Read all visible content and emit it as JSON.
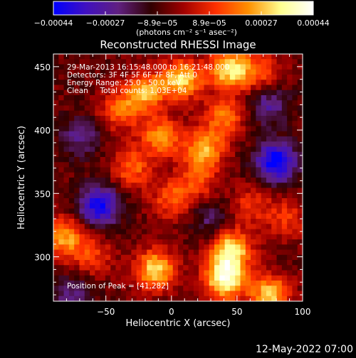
{
  "chart_data": {
    "type": "heatmap",
    "title": "Reconstructed RHESSI Image",
    "xlabel": "Heliocentric X (arcsec)",
    "ylabel": "Heliocentric Y (arcsec)",
    "xlim": [
      -90,
      100
    ],
    "ylim": [
      265,
      460
    ],
    "x_ticks": [
      -50,
      0,
      50,
      100
    ],
    "y_ticks": [
      300,
      350,
      400,
      450
    ],
    "x_tick_labels": [
      "−50",
      "0",
      "50",
      "100"
    ],
    "y_tick_labels": [
      "300",
      "350",
      "400",
      "450"
    ],
    "colorbar": {
      "range": [
        -0.00044,
        0.00044
      ],
      "tick_labels": [
        "−0.00044",
        "−0.00027",
        "−8.9e−05",
        "8.9e−05",
        "0.00027",
        "0.00044"
      ],
      "unit_label": "(photons cm⁻² s⁻¹ asec⁻²)",
      "colors": [
        "#0000ff",
        "#4010c0",
        "#602080",
        "#300000",
        "#a00000",
        "#ff3000",
        "#ff9000",
        "#ffff90",
        "#ffffff"
      ]
    },
    "annotations": [
      "29-Mar-2013 16:15:48.000 to 16:21:48.000",
      "Detectors: 3F 4F 5F 6F 7F 8F, Att 0",
      "Energy Range: 25.0 - 50.0 keV",
      "Clean     Total counts: 1.03E+04",
      "Position of Peak = [41,282]"
    ],
    "peak_position": [
      41,
      282
    ],
    "sources": [
      {
        "x": 41,
        "y": 282,
        "value": 0.00044
      },
      {
        "x": 45,
        "y": 305,
        "value": 0.0004
      },
      {
        "x": -12,
        "y": 290,
        "value": 0.00036
      },
      {
        "x": 75,
        "y": 270,
        "value": 0.00034
      },
      {
        "x": 45,
        "y": 448,
        "value": 0.0004
      },
      {
        "x": 8,
        "y": 440,
        "value": 0.00036
      },
      {
        "x": -20,
        "y": 430,
        "value": 0.0003
      },
      {
        "x": -40,
        "y": 415,
        "value": 0.00022
      },
      {
        "x": -8,
        "y": 395,
        "value": 0.00028
      },
      {
        "x": 25,
        "y": 385,
        "value": 0.0003
      },
      {
        "x": 40,
        "y": 410,
        "value": 0.00024
      },
      {
        "x": -30,
        "y": 370,
        "value": 0.00022
      },
      {
        "x": 0,
        "y": 345,
        "value": 0.0002
      },
      {
        "x": 20,
        "y": 360,
        "value": 0.00018
      },
      {
        "x": 60,
        "y": 340,
        "value": 0.00016
      },
      {
        "x": -82,
        "y": 315,
        "value": 0.0003
      },
      {
        "x": -60,
        "y": 300,
        "value": 0.00016
      },
      {
        "x": 88,
        "y": 330,
        "value": 0.00016
      },
      {
        "x": 70,
        "y": 445,
        "value": 0.00018
      },
      {
        "x": 80,
        "y": 375,
        "value": -0.0004
      },
      {
        "x": -55,
        "y": 340,
        "value": -0.00036
      },
      {
        "x": -70,
        "y": 395,
        "value": -0.00018
      },
      {
        "x": 75,
        "y": 420,
        "value": -0.0002
      },
      {
        "x": 30,
        "y": 330,
        "value": -0.00014
      },
      {
        "x": -75,
        "y": 270,
        "value": -0.00016
      }
    ]
  },
  "footer": {
    "date": "12-May-2022 07:00"
  }
}
